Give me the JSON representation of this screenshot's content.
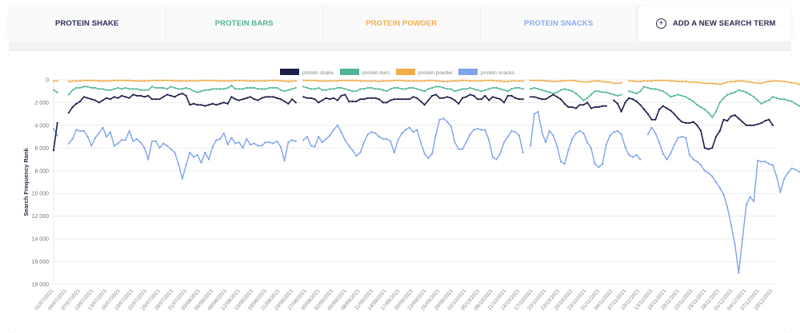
{
  "tabs": [
    {
      "label": "PROTEIN SHAKE",
      "color": "#2a2d5a"
    },
    {
      "label": "PROTEIN BARS",
      "color": "#4fb495"
    },
    {
      "label": "PROTEIN POWDER",
      "color": "#f2b04c"
    },
    {
      "label": "PROTEIN SNACKS",
      "color": "#8aaaf0"
    }
  ],
  "add_term": {
    "label": "ADD A NEW SEARCH TERM",
    "icon": "plus-circle-icon"
  },
  "chart_data": {
    "type": "line",
    "title": "",
    "xlabel": "",
    "ylabel": "Search Frequency Rank",
    "ylim": [
      0,
      18000
    ],
    "y_inverted": true,
    "y_ticks": [
      "0",
      "2 000",
      "4 000",
      "6 000",
      "8 000",
      "10 000",
      "12 000",
      "14 000",
      "16 000",
      "18 000"
    ],
    "y_tick_values": [
      0,
      2000,
      4000,
      6000,
      8000,
      10000,
      12000,
      14000,
      16000,
      18000
    ],
    "grid": true,
    "legend_position": "top-center",
    "x_start": "2021-07-01",
    "x_end": "2021-12-10",
    "x_tick_labels": [
      "01/07/2021",
      "04/07/2021",
      "07/07/2021",
      "10/07/2021",
      "13/07/2021",
      "16/07/2021",
      "19/07/2021",
      "22/07/2021",
      "25/07/2021",
      "28/07/2021",
      "31/07/2021",
      "03/08/2021",
      "06/08/2021",
      "09/08/2021",
      "12/08/2021",
      "15/08/2021",
      "18/08/2021",
      "21/08/2021",
      "24/08/2021",
      "27/08/2021",
      "30/08/2021",
      "02/09/2021",
      "05/09/2021",
      "08/09/2021",
      "11/09/2021",
      "14/09/2021",
      "17/09/2021",
      "20/09/2021",
      "23/09/2021",
      "26/09/2021",
      "29/09/2021",
      "02/10/2021",
      "05/10/2021",
      "08/10/2021",
      "11/10/2021",
      "14/10/2021",
      "17/10/2021",
      "20/10/2021",
      "23/10/2021",
      "26/10/2021",
      "29/10/2021",
      "01/11/2021",
      "04/11/2021",
      "07/11/2021",
      "10/11/2021",
      "13/11/2021",
      "16/11/2021",
      "19/11/2021",
      "22/11/2021",
      "25/11/2021",
      "28/11/2021",
      "01/12/2021",
      "04/12/2021",
      "07/12/2021",
      "10/12/2021"
    ],
    "gaps_after_day_index": [
      1,
      51,
      100,
      123
    ],
    "series": [
      {
        "name": "protein shake",
        "color": "#1c1f4a",
        "values": [
          6200,
          3800,
          null,
          null,
          2900,
          2400,
          2100,
          1900,
          1500,
          1600,
          1700,
          1800,
          2000,
          1800,
          1600,
          1700,
          1500,
          1600,
          1400,
          1500,
          1600,
          1300,
          1400,
          1400,
          1500,
          1400,
          1700,
          1700,
          1700,
          1500,
          1300,
          1400,
          1500,
          1300,
          1200,
          1400,
          2200,
          2100,
          2200,
          2200,
          2300,
          2200,
          2100,
          2200,
          2100,
          2000,
          2100,
          1500,
          1700,
          1800,
          1700,
          1600,
          1500,
          1700,
          1800,
          1600,
          1500,
          1500,
          1500,
          1600,
          1700,
          1900,
          2100,
          1700,
          2000,
          null,
          1500,
          1600,
          1600,
          1700,
          2000,
          1800,
          1600,
          1700,
          1600,
          1800,
          1400,
          1300,
          1900,
          1900,
          1900,
          1700,
          1700,
          1600,
          1600,
          1600,
          1700,
          2000,
          2000,
          1800,
          1700,
          1700,
          1700,
          1700,
          1700,
          1500,
          1600,
          1900,
          2200,
          1800,
          1400,
          1300,
          1600,
          1600,
          1500,
          1600,
          1800,
          2100,
          1600,
          1500,
          1300,
          1400,
          1700,
          1700,
          1400,
          1800,
          1500,
          1600,
          1700,
          2000,
          1400,
          1400,
          1600,
          1700,
          1700,
          null,
          1500,
          1500,
          1600,
          1700,
          1700,
          1500,
          1300,
          1500,
          1700,
          2100,
          2400,
          2400,
          2500,
          2200,
          2200,
          2000,
          2500,
          2400,
          2400,
          2300,
          2300,
          null,
          1800,
          2100,
          2800,
          2000,
          1600,
          1700,
          1900,
          2200,
          2600,
          3000,
          3500,
          3500,
          2600,
          2300,
          2500,
          2700,
          3000,
          3400,
          3700,
          3800,
          3800,
          3700,
          4000,
          4500,
          6000,
          6100,
          6000,
          5000,
          4500,
          3500,
          3600,
          3200,
          3100,
          3400,
          3700,
          4000,
          4000,
          4000,
          3900,
          3800,
          3600,
          3500,
          4000
        ]
      },
      {
        "name": "protein bars",
        "color": "#4fb495",
        "values": [
          900,
          1100,
          null,
          null,
          1300,
          900,
          700,
          700,
          600,
          600,
          700,
          700,
          800,
          800,
          900,
          900,
          800,
          700,
          800,
          700,
          800,
          800,
          800,
          900,
          900,
          900,
          600,
          700,
          700,
          700,
          800,
          600,
          700,
          800,
          800,
          700,
          800,
          1000,
          1100,
          1000,
          900,
          900,
          800,
          800,
          800,
          800,
          700,
          500,
          800,
          800,
          800,
          700,
          700,
          700,
          800,
          800,
          800,
          700,
          700,
          700,
          900,
          1000,
          900,
          800,
          700,
          null,
          600,
          700,
          800,
          800,
          700,
          900,
          900,
          800,
          800,
          700,
          700,
          800,
          900,
          1000,
          1000,
          800,
          800,
          700,
          700,
          800,
          800,
          900,
          1000,
          800,
          700,
          700,
          800,
          800,
          700,
          700,
          800,
          900,
          1000,
          800,
          700,
          600,
          600,
          700,
          800,
          800,
          1000,
          900,
          800,
          800,
          700,
          800,
          900,
          1000,
          900,
          800,
          700,
          700,
          800,
          900,
          1000,
          800,
          700,
          700,
          800,
          null,
          800,
          700,
          800,
          900,
          1000,
          1100,
          1200,
          1100,
          900,
          800,
          900,
          1000,
          1200,
          1500,
          1800,
          1600,
          1300,
          1000,
          1000,
          1100,
          1100,
          1200,
          1300,
          1400,
          1300,
          null,
          1000,
          1100,
          1200,
          1000,
          600,
          700,
          800,
          800,
          900,
          1000,
          1200,
          1500,
          1400,
          1300,
          1400,
          1500,
          1700,
          1900,
          2200,
          2400,
          2600,
          2900,
          3300,
          2800,
          2000,
          1600,
          1300,
          1200,
          1100,
          900,
          1000,
          1100,
          1300,
          1500,
          1800,
          2100,
          1900,
          1800,
          1500,
          1600,
          1700,
          1700,
          1800,
          1900,
          2100,
          2300
        ]
      },
      {
        "name": "protein powder",
        "color": "#f2ac48",
        "values": [
          100,
          100,
          null,
          null,
          150,
          100,
          100,
          100,
          50,
          50,
          50,
          50,
          100,
          100,
          100,
          100,
          50,
          50,
          50,
          50,
          50,
          100,
          100,
          100,
          100,
          100,
          50,
          50,
          50,
          50,
          50,
          50,
          100,
          100,
          100,
          100,
          100,
          100,
          100,
          50,
          50,
          50,
          50,
          100,
          100,
          100,
          100,
          100,
          50,
          50,
          50,
          100,
          100,
          100,
          100,
          100,
          100,
          50,
          50,
          50,
          100,
          100,
          150,
          100,
          100,
          null,
          50,
          50,
          50,
          50,
          100,
          100,
          100,
          100,
          100,
          100,
          50,
          50,
          50,
          50,
          50,
          100,
          100,
          100,
          100,
          100,
          150,
          100,
          100,
          100,
          50,
          50,
          50,
          100,
          100,
          100,
          100,
          100,
          100,
          50,
          50,
          100,
          100,
          150,
          150,
          100,
          100,
          100,
          50,
          50,
          100,
          100,
          100,
          100,
          50,
          50,
          50,
          100,
          100,
          150,
          150,
          100,
          100,
          100,
          100,
          null,
          50,
          50,
          50,
          50,
          100,
          100,
          150,
          150,
          100,
          100,
          50,
          50,
          100,
          150,
          200,
          200,
          150,
          100,
          100,
          150,
          200,
          200,
          300,
          300,
          250,
          null,
          100,
          100,
          150,
          150,
          100,
          100,
          100,
          50,
          50,
          50,
          50,
          100,
          100,
          150,
          150,
          150,
          200,
          200,
          200,
          250,
          300,
          300,
          300,
          350,
          400,
          300,
          200,
          150,
          150,
          100,
          100,
          150,
          200,
          250,
          300,
          300,
          200,
          150,
          100,
          100,
          100,
          150,
          200,
          250,
          300,
          400
        ]
      },
      {
        "name": "protein snacks",
        "color": "#7fa3ec",
        "values": [
          4300,
          4900,
          null,
          null,
          5600,
          5200,
          4400,
          4500,
          4500,
          5000,
          5800,
          5100,
          4700,
          4200,
          5000,
          4600,
          5800,
          5600,
          5300,
          5300,
          4500,
          5400,
          5200,
          5500,
          6000,
          7000,
          5400,
          5400,
          6000,
          5600,
          5800,
          6100,
          6400,
          7400,
          8700,
          7500,
          6400,
          6800,
          6600,
          7300,
          6400,
          7000,
          5900,
          5300,
          5200,
          4700,
          5700,
          5100,
          5600,
          5500,
          6000,
          5200,
          5700,
          5600,
          5800,
          5800,
          5500,
          5500,
          5600,
          5400,
          5900,
          7100,
          5500,
          5300,
          5400,
          null,
          5300,
          5000,
          5800,
          5900,
          5000,
          5500,
          5200,
          4900,
          4400,
          4000,
          4600,
          5300,
          5800,
          6200,
          6700,
          6400,
          5500,
          4800,
          4600,
          4700,
          5000,
          5200,
          5200,
          5400,
          6400,
          5300,
          4700,
          4400,
          4200,
          4600,
          4400,
          5500,
          6500,
          6900,
          6500,
          4800,
          3500,
          3400,
          3700,
          4100,
          5500,
          6100,
          6100,
          5500,
          4800,
          4400,
          4300,
          4400,
          4400,
          5300,
          6800,
          7000,
          6500,
          5500,
          5000,
          4500,
          4600,
          4900,
          6400,
          null,
          5800,
          3000,
          2800,
          4600,
          5500,
          4500,
          4900,
          5800,
          7200,
          7400,
          6200,
          5200,
          4700,
          4500,
          4700,
          5500,
          6000,
          7400,
          7700,
          7400,
          5700,
          4900,
          4600,
          4500,
          4800,
          5900,
          6600,
          6800,
          6600,
          7000,
          null,
          4800,
          4200,
          4700,
          5500,
          6500,
          7000,
          6500,
          5700,
          5100,
          5000,
          5100,
          6600,
          7000,
          7200,
          7500,
          8000,
          8200,
          8500,
          9000,
          9500,
          10100,
          11200,
          12800,
          14500,
          17000,
          14000,
          11000,
          10300,
          10700,
          7100,
          7200,
          7200,
          7400,
          7500,
          8500,
          9900,
          8700,
          8200,
          7800,
          7900,
          8100,
          8300,
          9100,
          10100
        ]
      }
    ]
  }
}
